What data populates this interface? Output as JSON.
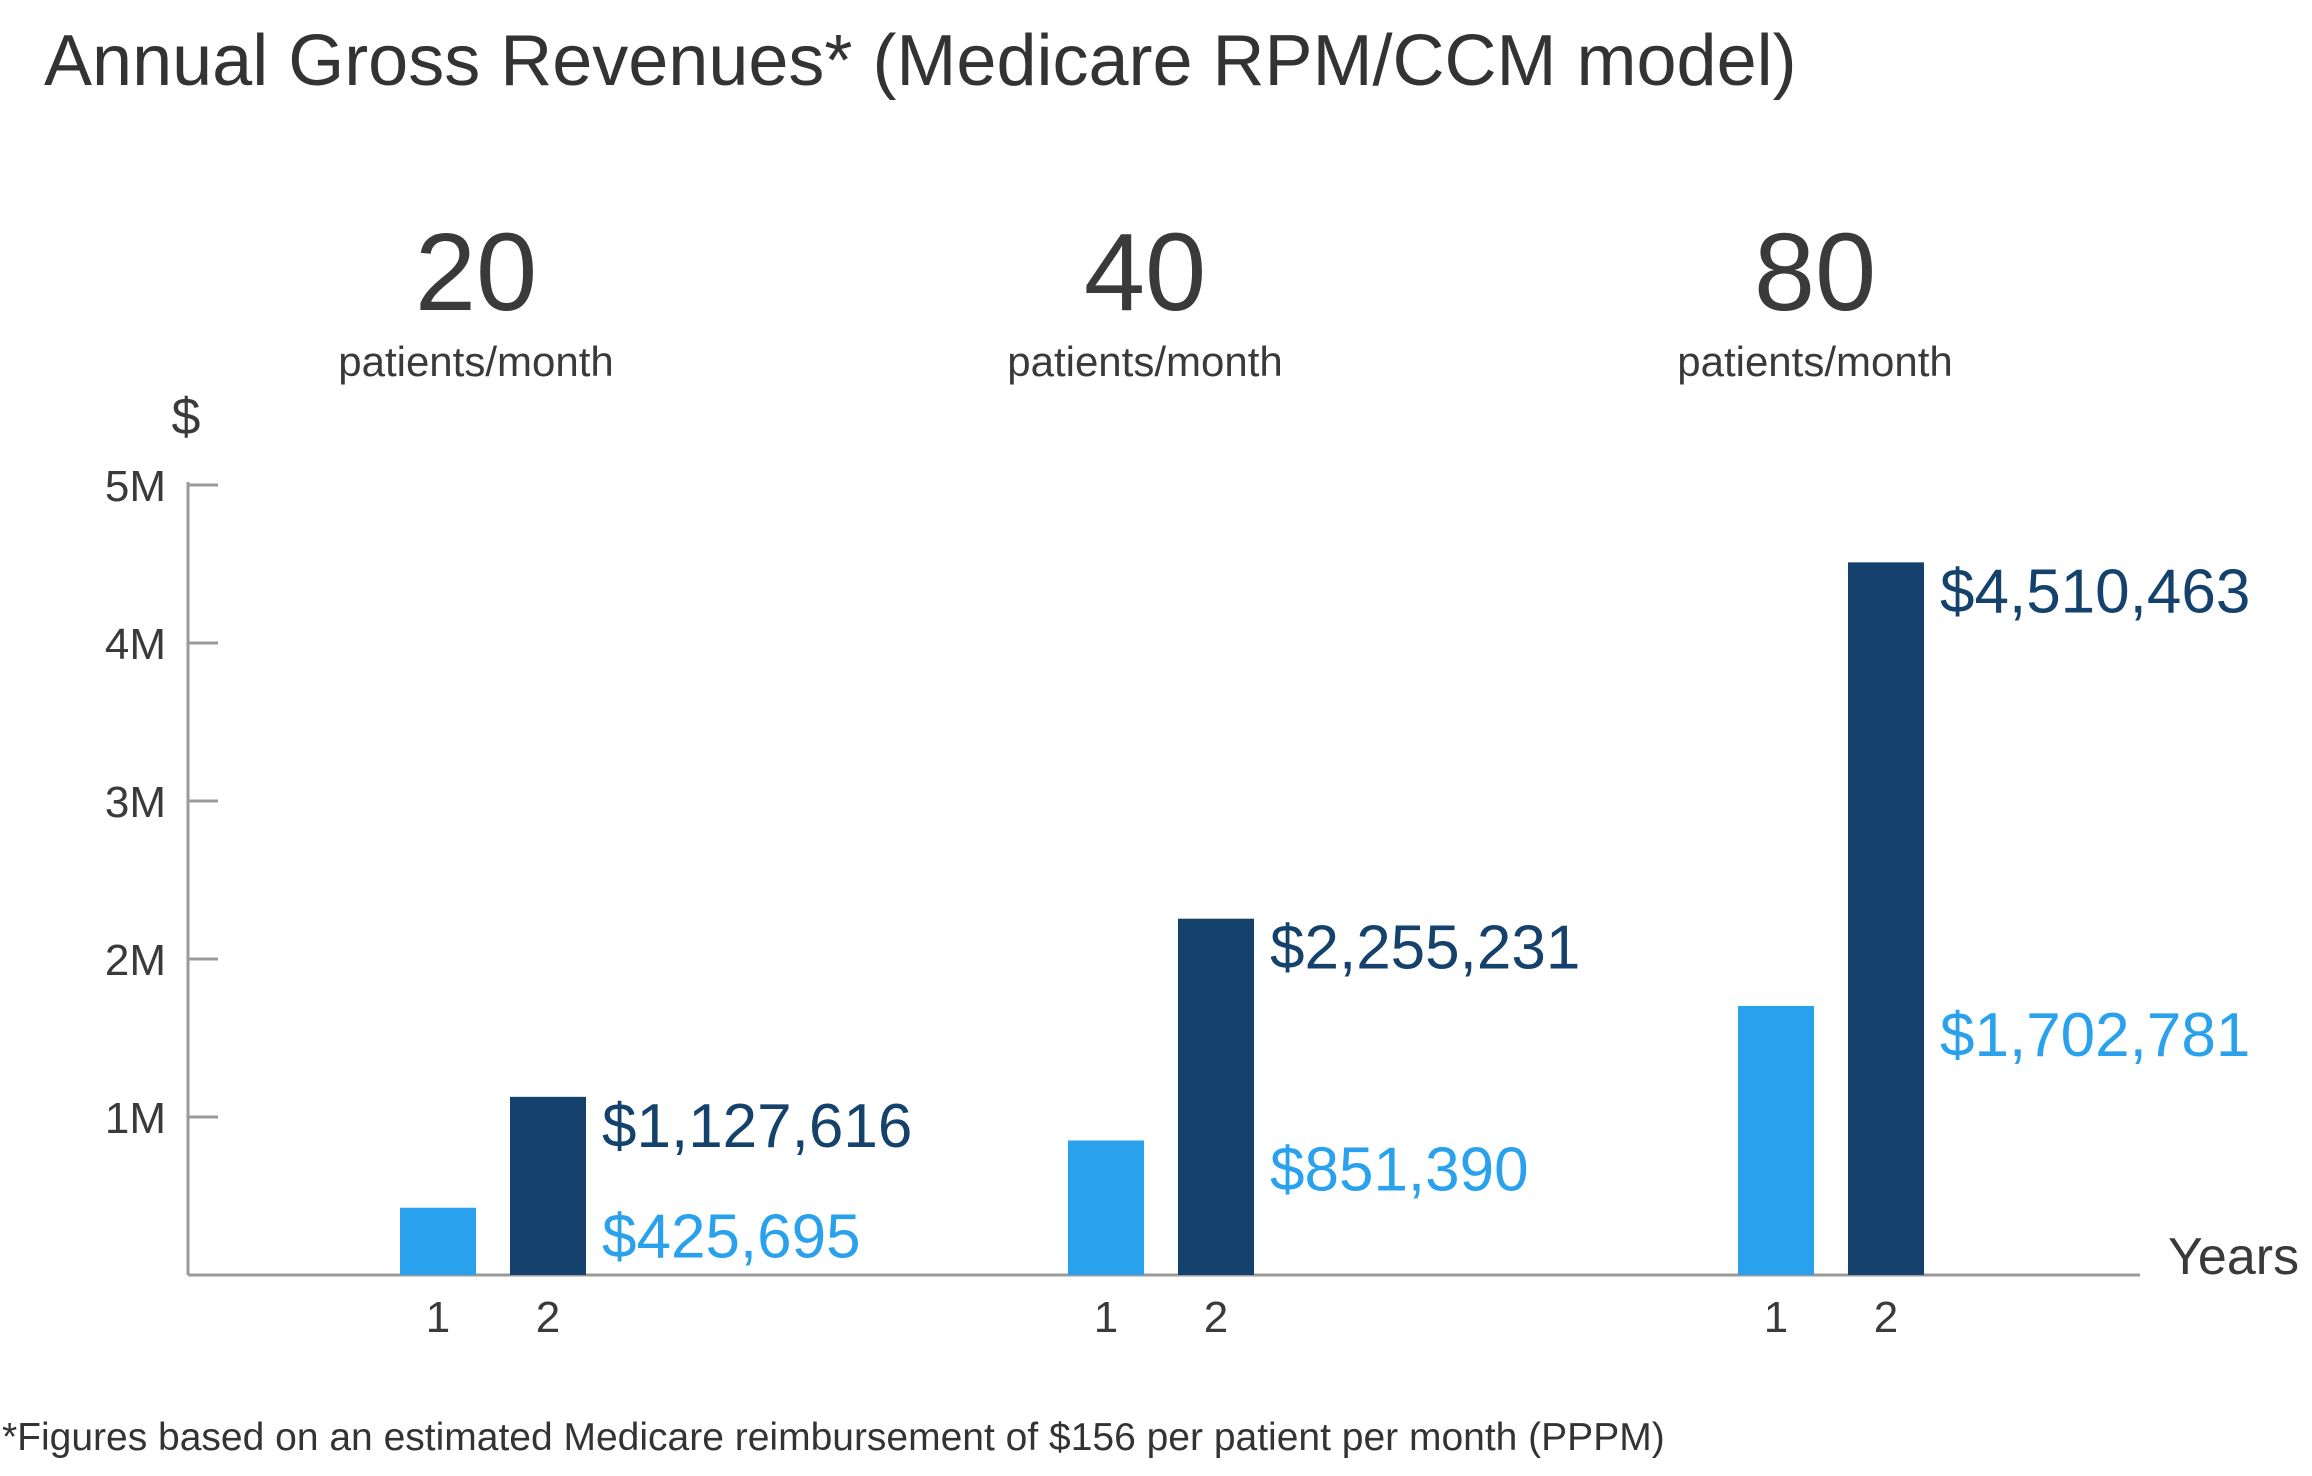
{
  "chart_data": {
    "type": "bar",
    "title": "Annual Gross Revenues* (Medicare RPM/CCM model)",
    "footnote": "*Figures based on an estimated Medicare reimbursement of $156 per patient per month (PPPM)",
    "ylabel": "$",
    "xlabel": "Years",
    "ylim": [
      0,
      5000000
    ],
    "yticks": [
      {
        "value": 1000000,
        "label": "1M"
      },
      {
        "value": 2000000,
        "label": "2M"
      },
      {
        "value": 3000000,
        "label": "3M"
      },
      {
        "value": 4000000,
        "label": "4M"
      },
      {
        "value": 5000000,
        "label": "5M"
      }
    ],
    "categories": [
      "1",
      "2"
    ],
    "colors": {
      "year1": "#2aa1ec",
      "year2": "#14426c",
      "axis": "#9a9a9a",
      "text": "#3a3a3a"
    },
    "groups": [
      {
        "headline": "20",
        "subtitle": "patients/month",
        "values": [
          425695,
          1127616
        ],
        "value_labels": [
          "$425,695",
          "$1,127,616"
        ]
      },
      {
        "headline": "40",
        "subtitle": "patients/month",
        "values": [
          851390,
          2255231
        ],
        "value_labels": [
          "$851,390",
          "$2,255,231"
        ]
      },
      {
        "headline": "80",
        "subtitle": "patients/month",
        "values": [
          1702781,
          4510463
        ],
        "value_labels": [
          "$1,702,781",
          "$4,510,463"
        ]
      }
    ]
  }
}
